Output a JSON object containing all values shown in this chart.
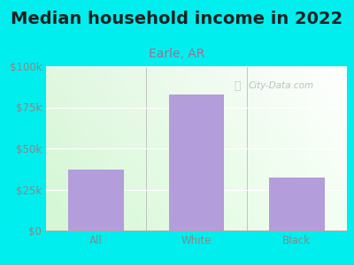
{
  "title": "Median household income in 2022",
  "subtitle": "Earle, AR",
  "categories": [
    "All",
    "White",
    "Black"
  ],
  "values": [
    37000,
    83000,
    32000
  ],
  "bar_color": "#b39ddb",
  "background_outer": "#00EEEE",
  "title_color": "#222222",
  "subtitle_color": "#a07090",
  "tick_color": "#888888",
  "ylim": [
    0,
    100000
  ],
  "yticks": [
    0,
    25000,
    50000,
    75000,
    100000
  ],
  "ytick_labels": [
    "$0",
    "$25k",
    "$50k",
    "$75k",
    "$100k"
  ],
  "watermark": "City-Data.com",
  "title_fontsize": 14,
  "subtitle_fontsize": 10,
  "tick_fontsize": 8.5
}
